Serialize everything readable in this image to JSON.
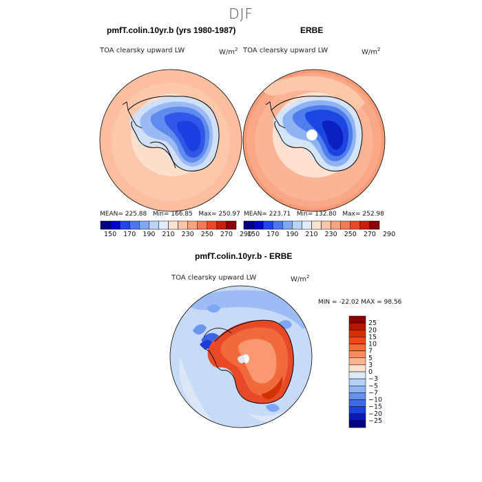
{
  "season": "DJF",
  "panels": [
    {
      "title": "pmfT.colin.10yr.b (yrs 1980-1987)",
      "variable": "TOA clearsky upward LW",
      "units_base": "W/m",
      "units_exp": "2",
      "stats": {
        "mean_label": "MEAN=",
        "mean": "225.88",
        "min_label": "Min=",
        "min": "166.85",
        "max_label": "Max=",
        "max": "250.97"
      }
    },
    {
      "title": "ERBE",
      "variable": "TOA clearsky upward LW",
      "units_base": "W/m",
      "units_exp": "2",
      "stats": {
        "mean_label": "MEAN=",
        "mean": "223.71",
        "min_label": "Min=",
        "min": "132.80",
        "max_label": "Max=",
        "max": "252.98"
      }
    },
    {
      "title": "pmfT.colin.10yr.b - ERBE",
      "variable": "TOA clearsky upward LW",
      "units_base": "W/m",
      "units_exp": "2",
      "stats": {
        "minmax_label": "MIN = -22.02  MAX =   98.56"
      }
    }
  ],
  "chart_data": [
    {
      "type": "heatmap",
      "projection": "south-polar-stereographic",
      "title": "pmfT.colin.10yr.b (yrs 1980-1987)",
      "colorbar_ticks": [
        "150",
        "170",
        "190",
        "210",
        "230",
        "250",
        "270",
        "290"
      ],
      "colorbar_colors": [
        "#000080",
        "#0000c8",
        "#1e46e6",
        "#4b78f0",
        "#7ea6f5",
        "#b9d3f9",
        "#e1ecfb",
        "#fde3d0",
        "#fcc5a6",
        "#fba47f",
        "#f37a55",
        "#e84a28",
        "#c81e0a",
        "#8b0000"
      ],
      "mean": 225.88,
      "min": 166.85,
      "max": 250.97
    },
    {
      "type": "heatmap",
      "projection": "south-polar-stereographic",
      "title": "ERBE",
      "colorbar_ticks": [
        "150",
        "170",
        "190",
        "210",
        "230",
        "250",
        "270",
        "290"
      ],
      "colorbar_colors": [
        "#000080",
        "#0000c8",
        "#1e46e6",
        "#4b78f0",
        "#7ea6f5",
        "#b9d3f9",
        "#e1ecfb",
        "#fde3d0",
        "#fcc5a6",
        "#fba47f",
        "#f37a55",
        "#e84a28",
        "#c81e0a",
        "#8b0000"
      ],
      "mean": 223.71,
      "min": 132.8,
      "max": 252.98
    },
    {
      "type": "heatmap",
      "projection": "south-polar-stereographic",
      "title": "pmfT.colin.10yr.b - ERBE",
      "colorbar_levels": [
        "25",
        "20",
        "15",
        "10",
        "7",
        "5",
        "3",
        "0",
        "−3",
        "−5",
        "−7",
        "−10",
        "−15",
        "−20",
        "−25"
      ],
      "colorbar_colors": [
        "#8b0000",
        "#b41400",
        "#d23200",
        "#ee4a14",
        "#f66a37",
        "#f98c5e",
        "#fbb492",
        "#fde1cd",
        "#dceaf7",
        "#b5d0f5",
        "#8eb4f2",
        "#6690ec",
        "#3f6ae6",
        "#1e3fd8",
        "#0a1ab4",
        "#000080"
      ],
      "min": -22.02,
      "max": 98.56
    }
  ]
}
